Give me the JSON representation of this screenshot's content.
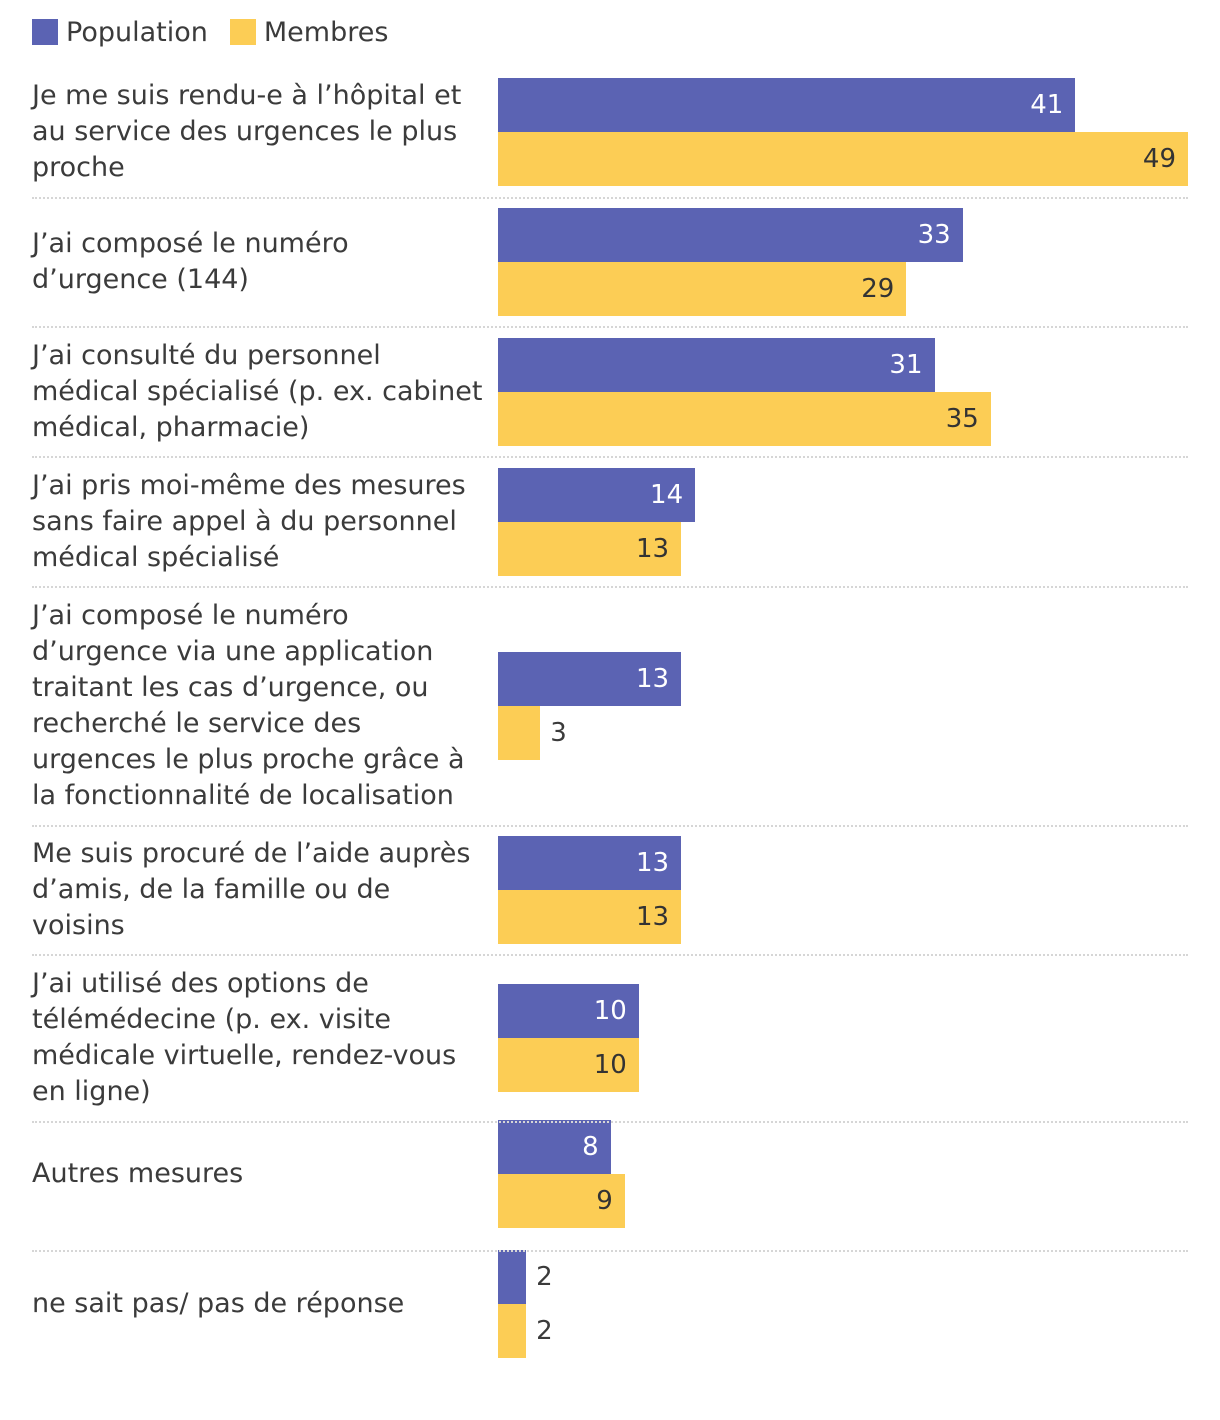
{
  "chart_data": {
    "type": "bar",
    "orientation": "horizontal",
    "legend_position": "top-left",
    "legend": [
      "Population",
      "Membres"
    ],
    "colors": {
      "Population": "#5b63b3",
      "Membres": "#fccd55"
    },
    "value_label_colors": {
      "inside_dark_bar": "#ffffff",
      "inside_light_bar": "#333333",
      "outside": "#3b3b3b"
    },
    "xlim": [
      0,
      49
    ],
    "categories": [
      [
        "Je me suis rendu-e à l’hôpital et",
        "au service des urgences le plus",
        "proche"
      ],
      [
        "J’ai composé le numéro",
        "d’urgence (144)"
      ],
      [
        "J’ai consulté du personnel",
        "médical spécialisé (p. ex. cabinet",
        "médical, pharmacie)"
      ],
      [
        "J’ai pris moi-même des mesures",
        "sans faire appel à du personnel",
        "médical spécialisé"
      ],
      [
        "J’ai composé le numéro",
        "d’urgence via une application",
        "traitant les cas d’urgence, ou",
        "recherché le service des",
        "urgences le plus proche grâce à",
        "la fonctionnalité de localisation"
      ],
      [
        "Me suis procuré de l’aide auprès",
        "d’amis, de la famille ou de",
        "voisins"
      ],
      [
        "J’ai utilisé des options de",
        "télémédecine (p. ex. visite",
        "médicale virtuelle, rendez-vous",
        "en ligne)"
      ],
      [
        "Autres mesures"
      ],
      [
        "ne sait pas/ pas de réponse"
      ]
    ],
    "series": [
      {
        "name": "Population",
        "values": [
          41,
          33,
          31,
          14,
          13,
          13,
          10,
          8,
          2
        ]
      },
      {
        "name": "Membres",
        "values": [
          49,
          29,
          35,
          13,
          3,
          13,
          10,
          9,
          2
        ]
      }
    ]
  }
}
